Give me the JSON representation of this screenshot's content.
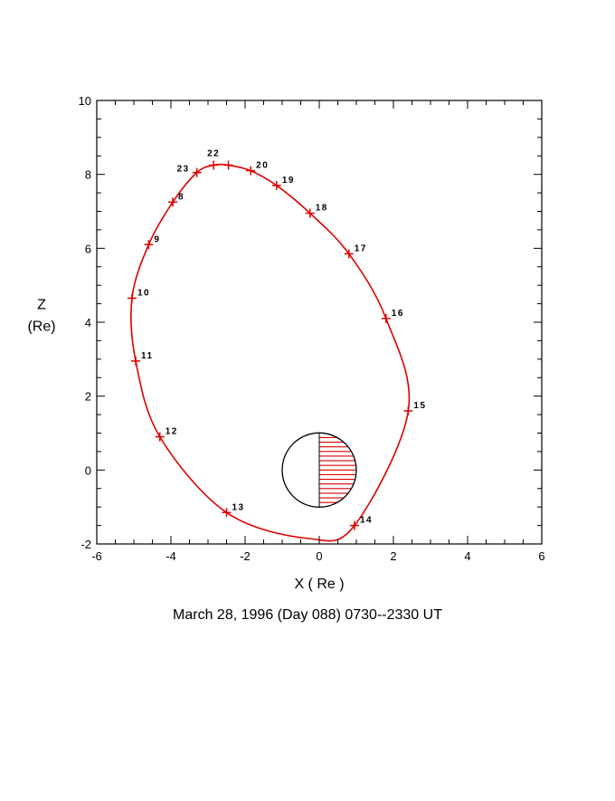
{
  "chart_data": {
    "type": "line",
    "caption": "March 28, 1996 (Day 088)  0730--2330 UT",
    "xlabel": "X ( Re )",
    "ylabel_line1": "Z",
    "ylabel_line2": "(Re)",
    "xlim": [
      -6,
      6
    ],
    "ylim": [
      -2,
      10
    ],
    "xticks": [
      -6,
      -4,
      -2,
      0,
      2,
      4,
      6
    ],
    "yticks": [
      -2,
      0,
      2,
      4,
      6,
      8,
      10
    ],
    "grid": false,
    "orbit_color": "#dd0000",
    "earth": {
      "center": [
        0,
        0
      ],
      "radius": 1,
      "night_side_hatched": "+x"
    },
    "orbit_center": [
      -1.3,
      3.18
    ],
    "hour_marks": [
      {
        "label": "8",
        "x": -3.95,
        "y": 7.25
      },
      {
        "label": "9",
        "x": -4.6,
        "y": 6.1
      },
      {
        "label": "10",
        "x": -5.05,
        "y": 4.65
      },
      {
        "label": "11",
        "x": -4.95,
        "y": 2.95
      },
      {
        "label": "12",
        "x": -4.3,
        "y": 0.9
      },
      {
        "label": "13",
        "x": -2.5,
        "y": -1.15
      },
      {
        "label": "14",
        "x": 0.95,
        "y": -1.5
      },
      {
        "label": "15",
        "x": 2.4,
        "y": 1.6
      },
      {
        "label": "16",
        "x": 1.8,
        "y": 4.1
      },
      {
        "label": "17",
        "x": 0.8,
        "y": 5.85
      },
      {
        "label": "18",
        "x": -0.25,
        "y": 6.95
      },
      {
        "label": "19",
        "x": -1.15,
        "y": 7.7
      },
      {
        "label": "20",
        "x": -1.85,
        "y": 8.1
      },
      {
        "label": "22",
        "x": -2.85,
        "y": 8.25
      },
      {
        "label": "23",
        "x": -3.3,
        "y": 8.05
      }
    ],
    "extra_ticks": [
      {
        "x": -2.45,
        "y": 8.25
      }
    ]
  }
}
